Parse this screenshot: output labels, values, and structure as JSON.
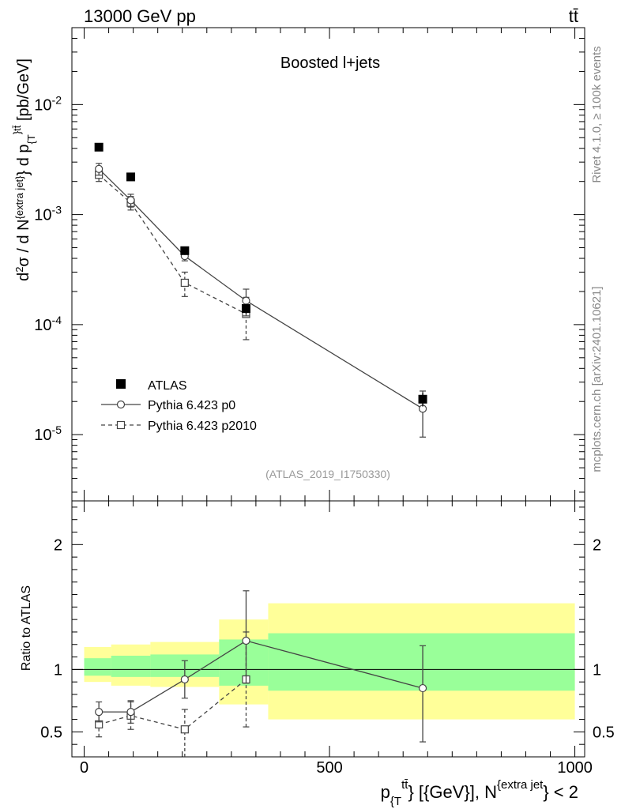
{
  "header": {
    "energy_label": "13000 GeV pp",
    "process_label": "tt̄"
  },
  "side_text": {
    "rivet": "Rivet 4.1.0, ≥ 100k events",
    "mcplots": "mcplots.cern.ch [arXiv:2401.10621]"
  },
  "chart_data": [
    {
      "type": "scatter",
      "title": "Boosted l+jets",
      "analysis_id": "(ATLAS_2019_I1750330)",
      "ylabel_parts": {
        "a": "d",
        "a_sup": "2",
        "b": "σ  /  d N",
        "b_sup": "{extra jet}",
        "c": "} d p",
        "c_sub": "{T",
        "c_sup": "}",
        "d_sup": "tt̄",
        "e": " [pb/GeV]"
      },
      "yscale": "log",
      "xlim": [
        -25,
        1020
      ],
      "ylim": [
        2.5e-06,
        0.05
      ],
      "y_tick_labels": [
        {
          "value": 0.01,
          "base": "10",
          "exp": "-2"
        },
        {
          "value": 0.001,
          "base": "10",
          "exp": "-3"
        },
        {
          "value": 0.0001,
          "base": "10",
          "exp": "-4"
        },
        {
          "value": 1e-05,
          "base": "10",
          "exp": "-5"
        }
      ],
      "legend_position": "bottom-left",
      "series": [
        {
          "name": "ATLAS",
          "style": "data-square",
          "x": [
            30,
            95,
            205,
            330,
            690
          ],
          "y": [
            0.0041,
            0.0022,
            0.00047,
            0.00014,
            2.1e-05
          ],
          "err_lo": [
            0.0003,
            0.00015,
            4e-05,
            1.5e-05,
            3e-06
          ],
          "err_hi": [
            0.0003,
            0.00015,
            4e-05,
            1.5e-05,
            3e-06
          ]
        },
        {
          "name": "Pythia 6.423 p0",
          "style": "solid-circle",
          "x": [
            30,
            95,
            205,
            330,
            690
          ],
          "y": [
            0.0026,
            0.00135,
            0.00042,
            0.000165,
            1.72e-05
          ],
          "err_lo": [
            0.00032,
            0.00018,
            4e-05,
            4.5e-05,
            7.7e-06
          ],
          "err_hi": [
            0.00032,
            0.00018,
            4e-05,
            4.5e-05,
            7.7e-06
          ]
        },
        {
          "name": "Pythia 6.423 p2010",
          "style": "dashed-square",
          "x": [
            30,
            95,
            205,
            330
          ],
          "y": [
            0.0023,
            0.00128,
            0.00024,
            0.000125
          ],
          "err_lo": [
            0.0003,
            0.00018,
            6e-05,
            5.2e-05
          ],
          "err_hi": [
            0.0003,
            0.00018,
            6e-05,
            5.2e-05
          ]
        }
      ]
    },
    {
      "type": "scatter",
      "title": "",
      "ylabel": "Ratio to ATLAS",
      "xlabel_parts": {
        "a": "p",
        "a_sub": "{T",
        "a_sup": "tt̄",
        "b": "} [{GeV}], N",
        "b_sup": "{extra jet",
        "c": "} < 2"
      },
      "xlim": [
        -25,
        1020
      ],
      "ylim": [
        0.3,
        2.35
      ],
      "x_tick_labels": [
        {
          "value": 0,
          "label": "0"
        },
        {
          "value": 500,
          "label": "500"
        },
        {
          "value": 1000,
          "label": "1000"
        }
      ],
      "y_tick_labels": [
        {
          "value": 0.5,
          "label": "0.5"
        },
        {
          "value": 1,
          "label": "1"
        },
        {
          "value": 2,
          "label": "2"
        }
      ],
      "reference_line": 1,
      "bands": [
        {
          "x0": 0,
          "x1": 55,
          "yellow": [
            0.9,
            1.18
          ],
          "green": [
            0.95,
            1.09
          ]
        },
        {
          "x0": 55,
          "x1": 135,
          "yellow": [
            0.87,
            1.2
          ],
          "green": [
            0.94,
            1.11
          ]
        },
        {
          "x0": 135,
          "x1": 275,
          "yellow": [
            0.86,
            1.22
          ],
          "green": [
            0.94,
            1.12
          ]
        },
        {
          "x0": 275,
          "x1": 375,
          "yellow": [
            0.72,
            1.4
          ],
          "green": [
            0.87,
            1.24
          ]
        },
        {
          "x0": 375,
          "x1": 1000,
          "yellow": [
            0.6,
            1.53
          ],
          "green": [
            0.83,
            1.29
          ]
        }
      ],
      "series": [
        {
          "name": "Pythia 6.423 p0",
          "style": "solid-circle",
          "x": [
            30,
            95,
            205,
            330,
            690
          ],
          "y": [
            0.66,
            0.66,
            0.92,
            1.23,
            0.85
          ],
          "err_lo": [
            0.08,
            0.09,
            0.15,
            0.34,
            0.43
          ],
          "err_hi": [
            0.08,
            0.09,
            0.15,
            0.4,
            0.34
          ]
        },
        {
          "name": "Pythia 6.423 p2010",
          "style": "dashed-square",
          "x": [
            30,
            95,
            205,
            330
          ],
          "y": [
            0.56,
            0.63,
            0.52,
            0.92
          ],
          "err_lo": [
            0.1,
            0.11,
            0.25,
            0.38
          ],
          "err_hi": [
            0.1,
            0.11,
            0.16,
            0.38
          ]
        }
      ]
    }
  ]
}
